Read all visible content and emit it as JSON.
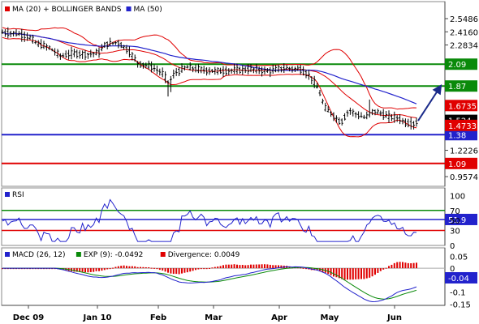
{
  "chart_data": [
    {
      "type": "line",
      "panel": "price",
      "title": "",
      "xlabel": "",
      "ylabel": "",
      "ylim": [
        0.86,
        2.72
      ],
      "legend": [
        {
          "label": "MA (20) + BOLLINGER BANDS",
          "color": "#e00000"
        },
        {
          "label": "MA (50)",
          "color": "#2222cc"
        }
      ],
      "y_ticks": [
        2.5486,
        2.416,
        2.2834,
        1.2226,
        0.9574
      ],
      "y_tick_labels": [
        "2.5486",
        "2.4160",
        "2.2834",
        "1.2226",
        "0.9574"
      ],
      "levels": [
        {
          "label": "2.09",
          "value": 2.09,
          "color": "#0a8a0a"
        },
        {
          "label": "1.87",
          "value": 1.87,
          "color": "#0a8a0a"
        },
        {
          "label": "1.38",
          "value": 1.38,
          "color": "#2222cc"
        },
        {
          "label": "1.09",
          "value": 1.09,
          "color": "#e00000"
        }
      ],
      "value_tags": [
        {
          "label": "1.6735",
          "value": 1.6735,
          "color": "#e00000"
        },
        {
          "label": "1.524",
          "value": 1.524,
          "color": "#000000"
        },
        {
          "label": "1.4733",
          "value": 1.4733,
          "color": "#e00000"
        }
      ],
      "series": [
        {
          "key": "ohlc",
          "color": "#000000",
          "kind": "bars"
        },
        {
          "key": "ma20",
          "color": "#e00000",
          "kind": "line"
        },
        {
          "key": "bb_upper",
          "color": "#e00000",
          "kind": "line"
        },
        {
          "key": "bb_lower",
          "color": "#e00000",
          "kind": "line"
        },
        {
          "key": "ma50",
          "color": "#2222cc",
          "kind": "line"
        }
      ],
      "forecast": {
        "from": [
          515,
          1.52
        ],
        "to": [
          542,
          1.86
        ],
        "color": "#1a2a8a"
      }
    },
    {
      "type": "line",
      "panel": "rsi",
      "title": "",
      "ylim": [
        0,
        115
      ],
      "legend": [
        {
          "label": "RSI",
          "color": "#2222cc"
        }
      ],
      "y_ticks": [
        100,
        50,
        0
      ],
      "y_tick_labels": [
        "100",
        "50",
        "0"
      ],
      "levels": [
        {
          "label": "70",
          "value": 70,
          "color": "#0a8a0a"
        },
        {
          "label": "30",
          "value": 30,
          "color": "#e00000"
        },
        {
          "label": "51.9",
          "value": 51.9,
          "color": "#2222cc",
          "tag": true
        }
      ]
    },
    {
      "type": "line",
      "panel": "macd",
      "title": "",
      "ylim": [
        -0.155,
        0.085
      ],
      "legend": [
        {
          "label": "MACD (26, 12)",
          "color": "#2222cc"
        },
        {
          "label": "EXP (9): -0.0492",
          "color": "#0a8a0a"
        },
        {
          "label": "Divergence: 0.0049",
          "color": "#e00000"
        }
      ],
      "y_ticks": [
        0.05,
        0,
        -0.1,
        -0.15
      ],
      "y_tick_labels": [
        "0.05",
        "0",
        "-0.1",
        "-0.15"
      ],
      "value_tag": {
        "label": "-0.04",
        "value": -0.04,
        "color": "#2222cc"
      }
    }
  ],
  "x_axis": {
    "labels": [
      "Dec 09",
      "Jan 10",
      "Feb",
      "Mar",
      "Apr",
      "May",
      "Jun"
    ]
  }
}
